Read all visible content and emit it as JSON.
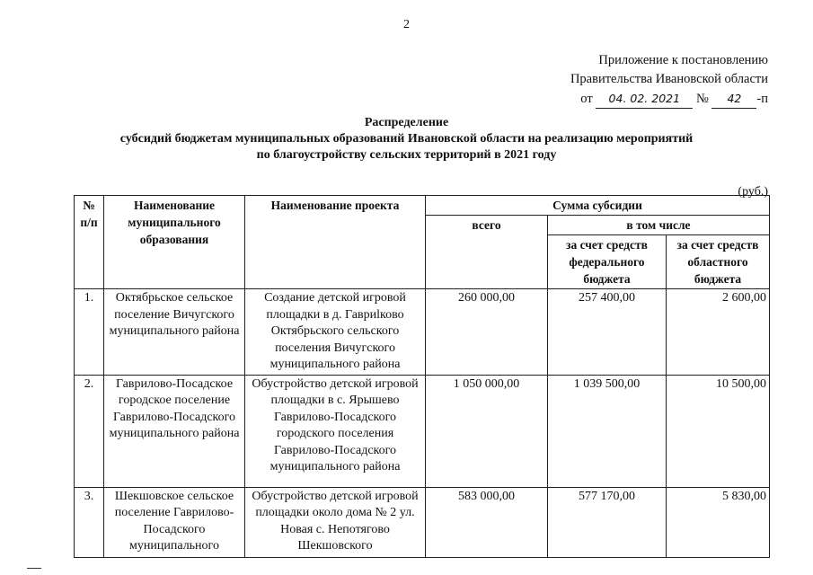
{
  "page_number": "2",
  "appendix": {
    "line1": "Приложение к постановлению",
    "line2": "Правительства Ивановской области",
    "date_prefix": "от",
    "date": "04. 02. 2021",
    "number_prefix": "№",
    "number": "42",
    "number_suffix": "-п"
  },
  "title": {
    "line1": "Распределение",
    "line2": "субсидий бюджетам муниципальных образований Ивановской области на реализацию мероприятий",
    "line3": "по благоустройству сельских территорий в 2021 году"
  },
  "unit": "(руб.)",
  "table": {
    "headers": {
      "num": "№ п/п",
      "municipality": "Наименование муниципального образования",
      "project": "Наименование проекта",
      "subsidy": "Сумма субсидии",
      "total": "всего",
      "including": "в том числе",
      "federal": "за счет средств федерального бюджета",
      "regional": "за счет средств областного бюджета"
    },
    "rows": [
      {
        "num": "1.",
        "municipality": "Октябрьское сельское поселение Вичугского муниципального района",
        "project": "Создание детской игровой площадки в д. Гавриlково Октябрьского сельского поселения Вичугского муниципального района",
        "total": "260 000,00",
        "federal": "257 400,00",
        "regional": "2 600,00"
      },
      {
        "num": "2.",
        "municipality": "Гаврилово-Посадское городское поселение Гаврилово-Посадского муниципального района",
        "project": "Обустройство детской игровой площадки в с. Ярышево Гаврилово-Посадского городского поселения Гаврилово-Посадского муниципального района",
        "total": "1 050 000,00",
        "federal": "1 039 500,00",
        "regional": "10 500,00"
      },
      {
        "num": "3.",
        "municipality": "Шекшовское сельское поселение Гаврилово-Посадского муниципального",
        "project": "Обустройство детской игровой площадки около дома № 2 ул. Новая с. Непотягово Шекшовского",
        "total": "583 000,00",
        "federal": "577 170,00",
        "regional": "5 830,00"
      }
    ]
  }
}
